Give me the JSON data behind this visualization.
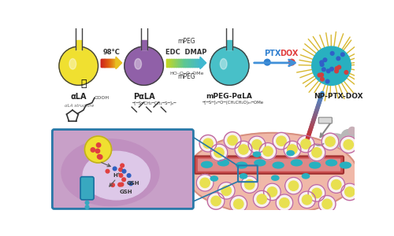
{
  "bg_color": "#ffffff",
  "flask1_color": "#f0e030",
  "flask1_label": "αLA",
  "flask2_color": "#9060a8",
  "flask2_label": "PαLA",
  "flask3_color": "#48c0c8",
  "flask3_label": "mPEG-PαLA",
  "arrow1_colors": [
    "#cc2020",
    "#e06010",
    "#e8c020"
  ],
  "arrow1_label": "98°C",
  "arrow2_colors": [
    "#c8d820",
    "#60c890",
    "#40b8d0"
  ],
  "arrow2_label": "EDC  DMAP",
  "arrow2_sub": "mPEG",
  "arrow3_color": "#4090d8",
  "ptx_label": "PTX",
  "dox_label": "DOX",
  "ptx_color": "#3080d0",
  "dox_color": "#e04040",
  "np_label": "NP-PTX-DOX",
  "np_core_color": "#28b0c0",
  "np_spike_color": "#d8b830",
  "inj_arrow_color1": "#4090d8",
  "inj_arrow_color2": "#cc3030",
  "tissue_color": "#f0b8a8",
  "tissue_edge": "#d89080",
  "vessel_color": "#cc5050",
  "vessel_light": "#dd8888",
  "cell_outer_color": "#e8c0d0",
  "cell_ring_color": "#c068a0",
  "cell_inner_color": "#e8e050",
  "cell_white_color": "#f8f0f0",
  "np_vessel_color": "#28b0c0",
  "inset_bg": "#c8a0c8",
  "inset_edge": "#2878a8",
  "nucleus_color": "#ddc8e8",
  "endo_color": "#f0e030",
  "endo_edge": "#c0b020",
  "drug_cyl_color": "#38a8c0",
  "drug_cyl_edge": "#1870a0",
  "tumor_tissue_color": "#e8a898",
  "gsh_color": "#333333",
  "arrow_gsh_color": "#555555"
}
